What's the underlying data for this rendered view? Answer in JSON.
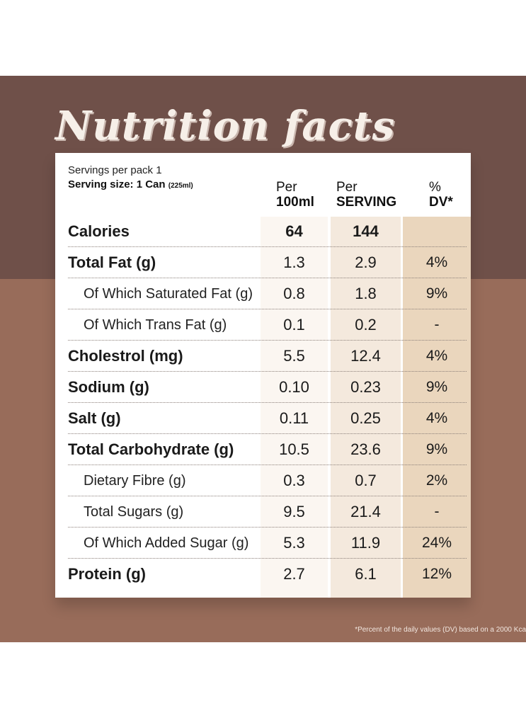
{
  "title": "Nutrition facts",
  "servings_per_pack": "Servings per pack 1",
  "serving_size_label": "Serving size: 1 Can",
  "serving_size_ml": "(225ml)",
  "columns": {
    "per_100ml_line1": "Per",
    "per_100ml_line2": "100ml",
    "per_serving_line1": "Per",
    "per_serving_line2": "SERVING",
    "dv_line1": "%",
    "dv_line2": "DV*"
  },
  "rows": [
    {
      "label": "Calories",
      "per_100ml": "64",
      "per_serving": "144",
      "dv": ""
    },
    {
      "label": "Total Fat (g)",
      "per_100ml": "1.3",
      "per_serving": "2.9",
      "dv": "4%"
    },
    {
      "label": "Of Which Saturated Fat (g)",
      "per_100ml": "0.8",
      "per_serving": "1.8",
      "dv": "9%"
    },
    {
      "label": "Of Which Trans Fat (g)",
      "per_100ml": "0.1",
      "per_serving": "0.2",
      "dv": "-"
    },
    {
      "label": "Cholestrol (mg)",
      "per_100ml": "5.5",
      "per_serving": "12.4",
      "dv": "4%"
    },
    {
      "label": "Sodium (g)",
      "per_100ml": "0.10",
      "per_serving": "0.23",
      "dv": "9%"
    },
    {
      "label": "Salt (g)",
      "per_100ml": "0.11",
      "per_serving": "0.25",
      "dv": "4%"
    },
    {
      "label": "Total Carbohydrate (g)",
      "per_100ml": "10.5",
      "per_serving": "23.6",
      "dv": "9%"
    },
    {
      "label": "Dietary Fibre (g)",
      "per_100ml": "0.3",
      "per_serving": "0.7",
      "dv": "2%"
    },
    {
      "label": "Total Sugars (g)",
      "per_100ml": "9.5",
      "per_serving": "21.4",
      "dv": "-"
    },
    {
      "label": "Of Which Added Sugar (g)",
      "per_100ml": "5.3",
      "per_serving": "11.9",
      "dv": "24%"
    },
    {
      "label": "Protein (g)",
      "per_100ml": "2.7",
      "per_serving": "6.1",
      "dv": "12%"
    }
  ],
  "footnote": "*Percent of the daily values (DV) based on a 2000 Kca",
  "colors": {
    "band_top": "#6f5049",
    "band_bottom": "#986c5a",
    "col_per_100ml": "#fbf6f1",
    "col_per_serving": "#f4e9dd",
    "col_dv": "#ead6bd"
  }
}
